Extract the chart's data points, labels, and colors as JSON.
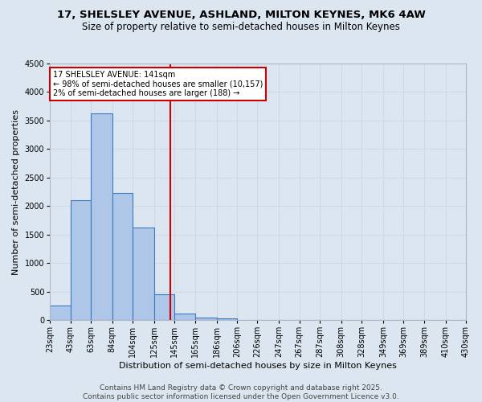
{
  "title1": "17, SHELSLEY AVENUE, ASHLAND, MILTON KEYNES, MK6 4AW",
  "title2": "Size of property relative to semi-detached houses in Milton Keynes",
  "xlabel": "Distribution of semi-detached houses by size in Milton Keynes",
  "ylabel": "Number of semi-detached properties",
  "bin_labels": [
    "23sqm",
    "43sqm",
    "63sqm",
    "84sqm",
    "104sqm",
    "125sqm",
    "145sqm",
    "165sqm",
    "186sqm",
    "206sqm",
    "226sqm",
    "247sqm",
    "267sqm",
    "287sqm",
    "308sqm",
    "328sqm",
    "349sqm",
    "369sqm",
    "389sqm",
    "410sqm",
    "430sqm"
  ],
  "bar_values": [
    250,
    2100,
    3620,
    2230,
    1630,
    450,
    110,
    50,
    30,
    0,
    0,
    0,
    0,
    0,
    0,
    0,
    0,
    0,
    0,
    0
  ],
  "bar_color": "#aec6e8",
  "bar_edge_color": "#3a7abf",
  "property_line_x": 141,
  "bin_edges": [
    23,
    43,
    63,
    84,
    104,
    125,
    145,
    165,
    186,
    206,
    226,
    247,
    267,
    287,
    308,
    328,
    349,
    369,
    389,
    410,
    430
  ],
  "annotation_title": "17 SHELSLEY AVENUE: 141sqm",
  "annotation_line1": "← 98% of semi-detached houses are smaller (10,157)",
  "annotation_line2": "2% of semi-detached houses are larger (188) →",
  "annotation_box_color": "#ffffff",
  "annotation_box_edge_color": "#cc0000",
  "vline_color": "#cc0000",
  "ylim": [
    0,
    4500
  ],
  "yticks": [
    0,
    500,
    1000,
    1500,
    2000,
    2500,
    3000,
    3500,
    4000,
    4500
  ],
  "grid_color": "#d0d8e8",
  "background_color": "#dce6f0",
  "footer_line1": "Contains HM Land Registry data © Crown copyright and database right 2025.",
  "footer_line2": "Contains public sector information licensed under the Open Government Licence v3.0.",
  "title1_fontsize": 9.5,
  "title2_fontsize": 8.5,
  "axis_label_fontsize": 8,
  "tick_fontsize": 7,
  "footer_fontsize": 6.5,
  "annotation_fontsize": 7
}
